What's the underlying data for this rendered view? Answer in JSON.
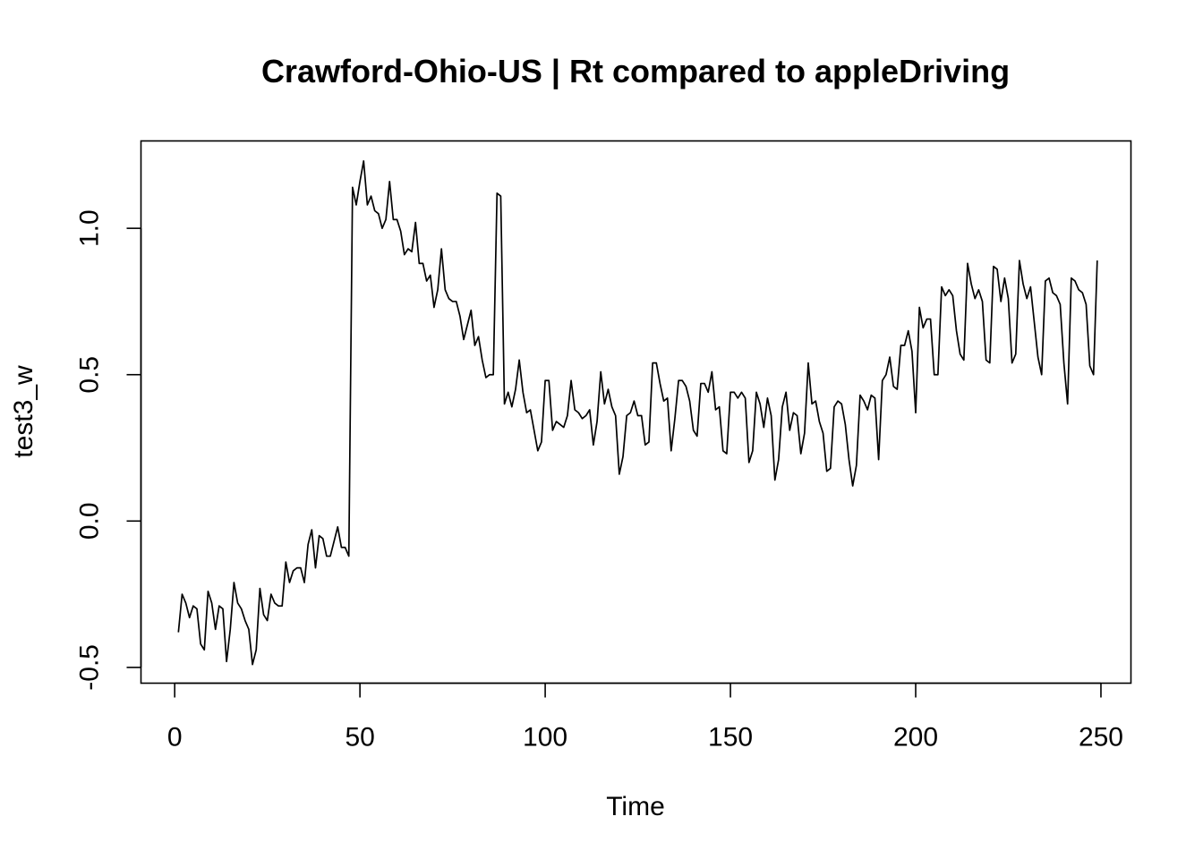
{
  "chart_data": {
    "type": "line",
    "title": "Crawford-Ohio-US | Rt compared to appleDriving",
    "xlabel": "Time",
    "ylabel": "test3_w",
    "xlim": [
      -9.1,
      258.1
    ],
    "ylim": [
      -0.5539,
      1.2985
    ],
    "xticks": [
      0,
      50,
      100,
      150,
      200,
      250
    ],
    "xtick_labels": [
      "0",
      "50",
      "100",
      "150",
      "200",
      "250"
    ],
    "yticks": [
      -0.5,
      0.0,
      0.5,
      1.0
    ],
    "ytick_labels": [
      "-0.5",
      "0.0",
      "0.5",
      "1.0"
    ],
    "grid": false,
    "line_color": "#000000",
    "series": [
      {
        "x_start": 1,
        "values": [
          -0.38,
          -0.25,
          -0.28,
          -0.33,
          -0.29,
          -0.3,
          -0.42,
          -0.44,
          -0.24,
          -0.28,
          -0.37,
          -0.29,
          -0.3,
          -0.48,
          -0.37,
          -0.21,
          -0.28,
          -0.3,
          -0.34,
          -0.37,
          -0.49,
          -0.44,
          -0.23,
          -0.32,
          -0.34,
          -0.25,
          -0.28,
          -0.29,
          -0.29,
          -0.14,
          -0.21,
          -0.17,
          -0.16,
          -0.16,
          -0.21,
          -0.08,
          -0.03,
          -0.16,
          -0.05,
          -0.06,
          -0.12,
          -0.12,
          -0.07,
          -0.02,
          -0.09,
          -0.09,
          -0.12,
          1.14,
          1.08,
          1.16,
          1.23,
          1.08,
          1.11,
          1.06,
          1.05,
          1.0,
          1.03,
          1.16,
          1.03,
          1.03,
          0.99,
          0.91,
          0.93,
          0.92,
          1.02,
          0.88,
          0.88,
          0.82,
          0.84,
          0.73,
          0.79,
          0.93,
          0.79,
          0.76,
          0.75,
          0.75,
          0.7,
          0.62,
          0.67,
          0.72,
          0.6,
          0.63,
          0.55,
          0.49,
          0.5,
          0.5,
          1.12,
          1.11,
          0.4,
          0.44,
          0.39,
          0.45,
          0.55,
          0.44,
          0.37,
          0.38,
          0.31,
          0.24,
          0.27,
          0.48,
          0.48,
          0.31,
          0.34,
          0.33,
          0.32,
          0.36,
          0.48,
          0.38,
          0.37,
          0.35,
          0.36,
          0.38,
          0.26,
          0.34,
          0.51,
          0.4,
          0.45,
          0.39,
          0.36,
          0.16,
          0.22,
          0.36,
          0.37,
          0.41,
          0.36,
          0.36,
          0.26,
          0.27,
          0.54,
          0.54,
          0.47,
          0.41,
          0.42,
          0.24,
          0.35,
          0.48,
          0.48,
          0.46,
          0.41,
          0.31,
          0.29,
          0.47,
          0.47,
          0.44,
          0.51,
          0.38,
          0.39,
          0.24,
          0.23,
          0.44,
          0.44,
          0.42,
          0.44,
          0.42,
          0.2,
          0.24,
          0.44,
          0.4,
          0.32,
          0.42,
          0.36,
          0.14,
          0.21,
          0.39,
          0.44,
          0.31,
          0.37,
          0.36,
          0.23,
          0.3,
          0.54,
          0.4,
          0.41,
          0.34,
          0.3,
          0.17,
          0.18,
          0.39,
          0.41,
          0.4,
          0.33,
          0.21,
          0.12,
          0.19,
          0.43,
          0.41,
          0.38,
          0.43,
          0.42,
          0.21,
          0.48,
          0.5,
          0.56,
          0.46,
          0.45,
          0.6,
          0.6,
          0.65,
          0.58,
          0.37,
          0.73,
          0.66,
          0.69,
          0.69,
          0.5,
          0.5,
          0.8,
          0.77,
          0.79,
          0.77,
          0.65,
          0.57,
          0.55,
          0.88,
          0.81,
          0.76,
          0.79,
          0.75,
          0.55,
          0.54,
          0.87,
          0.86,
          0.75,
          0.83,
          0.76,
          0.54,
          0.57,
          0.89,
          0.81,
          0.76,
          0.8,
          0.68,
          0.56,
          0.5,
          0.82,
          0.83,
          0.78,
          0.77,
          0.74,
          0.54,
          0.4,
          0.83,
          0.82,
          0.79,
          0.78,
          0.74,
          0.53,
          0.5,
          0.89
        ]
      }
    ]
  }
}
